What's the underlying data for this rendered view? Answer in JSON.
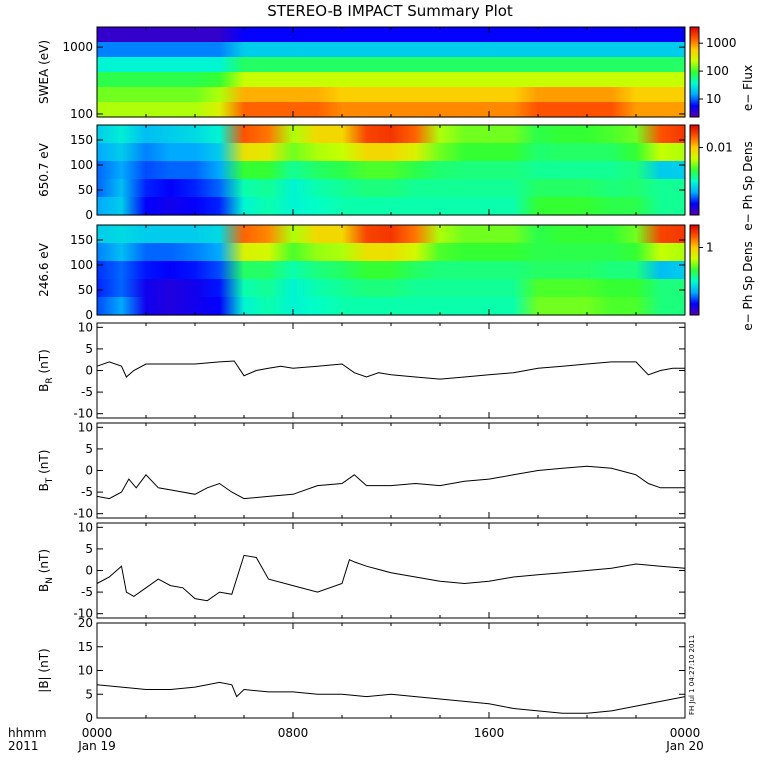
{
  "title": "STEREO-B IMPACT Summary Plot",
  "time_axis": {
    "corner_labels": [
      "hhmm",
      "2011"
    ],
    "ticks": [
      {
        "hours": 0,
        "top": "0000",
        "bottom": "Jan 19"
      },
      {
        "hours": 8,
        "top": "0800",
        "bottom": ""
      },
      {
        "hours": 16,
        "top": "1600",
        "bottom": ""
      },
      {
        "hours": 24,
        "top": "0000",
        "bottom": "Jan 20"
      }
    ]
  },
  "side_stamp": "FH Jul 1 04:27:10 2011",
  "colors": {
    "colormap": [
      "#5500aa",
      "#0000ff",
      "#00aaff",
      "#00ffcc",
      "#33ff33",
      "#ccff00",
      "#ffcc00",
      "#ff5500",
      "#dd0000"
    ],
    "line": "#000000"
  },
  "chart_data": [
    {
      "type": "heatmap",
      "id": "swea",
      "ylabel": "SWEA (eV)",
      "yscale": "log",
      "ylim": [
        90,
        2000
      ],
      "yticks": [
        "100",
        "1000"
      ],
      "colorbar_label": "e− Flux",
      "colorbar_ticks": [
        "10",
        "100",
        "1000"
      ],
      "x_hours": [
        0,
        1,
        2,
        3,
        4,
        5,
        6,
        7,
        8,
        9,
        10,
        11,
        12,
        13,
        14,
        15,
        16,
        17,
        18,
        19,
        20,
        21,
        22,
        23,
        24
      ],
      "energy_rows": [
        {
          "energy_eV": 1800,
          "levels": [
            0.05,
            0.05,
            0.05,
            0.05,
            0.05,
            0.05,
            0.12,
            0.12,
            0.12,
            0.12,
            0.12,
            0.12,
            0.12,
            0.12,
            0.12,
            0.12,
            0.12,
            0.12,
            0.12,
            0.12,
            0.12,
            0.12,
            0.12,
            0.12,
            0.12
          ]
        },
        {
          "energy_eV": 1000,
          "levels": [
            0.22,
            0.22,
            0.22,
            0.22,
            0.22,
            0.22,
            0.3,
            0.3,
            0.3,
            0.3,
            0.3,
            0.3,
            0.3,
            0.3,
            0.3,
            0.3,
            0.3,
            0.3,
            0.3,
            0.3,
            0.3,
            0.3,
            0.3,
            0.3,
            0.3
          ]
        },
        {
          "energy_eV": 600,
          "levels": [
            0.36,
            0.36,
            0.36,
            0.36,
            0.36,
            0.36,
            0.46,
            0.46,
            0.46,
            0.46,
            0.46,
            0.46,
            0.46,
            0.46,
            0.46,
            0.46,
            0.46,
            0.46,
            0.46,
            0.46,
            0.46,
            0.46,
            0.46,
            0.46,
            0.46
          ]
        },
        {
          "energy_eV": 300,
          "levels": [
            0.48,
            0.48,
            0.48,
            0.48,
            0.48,
            0.5,
            0.62,
            0.62,
            0.62,
            0.62,
            0.62,
            0.62,
            0.62,
            0.62,
            0.62,
            0.62,
            0.62,
            0.62,
            0.62,
            0.62,
            0.62,
            0.62,
            0.62,
            0.62,
            0.62
          ]
        },
        {
          "energy_eV": 180,
          "levels": [
            0.55,
            0.55,
            0.55,
            0.55,
            0.55,
            0.6,
            0.78,
            0.78,
            0.78,
            0.78,
            0.74,
            0.74,
            0.74,
            0.74,
            0.74,
            0.74,
            0.74,
            0.74,
            0.8,
            0.8,
            0.8,
            0.8,
            0.74,
            0.74,
            0.74
          ]
        },
        {
          "energy_eV": 110,
          "levels": [
            0.6,
            0.6,
            0.6,
            0.6,
            0.6,
            0.66,
            0.86,
            0.86,
            0.86,
            0.86,
            0.82,
            0.82,
            0.82,
            0.82,
            0.82,
            0.82,
            0.82,
            0.82,
            0.88,
            0.88,
            0.88,
            0.88,
            0.8,
            0.8,
            0.8
          ]
        }
      ]
    },
    {
      "type": "heatmap",
      "id": "pad650",
      "ylabel": "650.7 eV",
      "ylim": [
        0,
        180
      ],
      "yticks": [
        0,
        50,
        100,
        150
      ],
      "colorbar_label": "e− Ph Sp Dens",
      "colorbar_ticks": [
        "0.01"
      ],
      "x_hours": [
        0,
        1,
        2,
        3,
        4,
        5,
        6,
        7,
        8,
        9,
        10,
        11,
        12,
        13,
        14,
        15,
        16,
        17,
        18,
        19,
        20,
        21,
        22,
        23,
        24
      ],
      "pitch_rows": [
        {
          "pitch_deg": 165,
          "levels": [
            0.3,
            0.35,
            0.28,
            0.3,
            0.32,
            0.36,
            0.88,
            0.84,
            0.6,
            0.72,
            0.72,
            0.9,
            0.92,
            0.86,
            0.6,
            0.55,
            0.55,
            0.55,
            0.48,
            0.5,
            0.5,
            0.52,
            0.55,
            0.88,
            0.92
          ]
        },
        {
          "pitch_deg": 120,
          "levels": [
            0.25,
            0.3,
            0.22,
            0.25,
            0.25,
            0.3,
            0.7,
            0.68,
            0.55,
            0.6,
            0.62,
            0.72,
            0.72,
            0.66,
            0.55,
            0.5,
            0.5,
            0.5,
            0.45,
            0.46,
            0.46,
            0.46,
            0.5,
            0.62,
            0.6
          ]
        },
        {
          "pitch_deg": 90,
          "levels": [
            0.2,
            0.25,
            0.18,
            0.2,
            0.2,
            0.25,
            0.5,
            0.5,
            0.42,
            0.46,
            0.48,
            0.52,
            0.52,
            0.48,
            0.45,
            0.44,
            0.44,
            0.44,
            0.42,
            0.42,
            0.42,
            0.42,
            0.44,
            0.3,
            0.3
          ]
        },
        {
          "pitch_deg": 45,
          "levels": [
            0.2,
            0.28,
            0.15,
            0.12,
            0.15,
            0.2,
            0.4,
            0.42,
            0.36,
            0.4,
            0.42,
            0.44,
            0.44,
            0.42,
            0.42,
            0.42,
            0.42,
            0.42,
            0.46,
            0.46,
            0.46,
            0.44,
            0.45,
            0.42,
            0.42
          ]
        },
        {
          "pitch_deg": 10,
          "levels": [
            0.25,
            0.3,
            0.12,
            0.1,
            0.12,
            0.15,
            0.36,
            0.4,
            0.36,
            0.38,
            0.4,
            0.4,
            0.4,
            0.4,
            0.4,
            0.4,
            0.4,
            0.4,
            0.5,
            0.5,
            0.5,
            0.48,
            0.48,
            0.42,
            0.42
          ]
        }
      ]
    },
    {
      "type": "heatmap",
      "id": "pad246",
      "ylabel": "246.6 eV",
      "ylim": [
        0,
        180
      ],
      "yticks": [
        0,
        50,
        100,
        150
      ],
      "colorbar_label": "e− Ph Sp Dens",
      "colorbar_ticks": [
        "1"
      ],
      "x_hours": [
        0,
        1,
        2,
        3,
        4,
        5,
        6,
        7,
        8,
        9,
        10,
        11,
        12,
        13,
        14,
        15,
        16,
        17,
        18,
        19,
        20,
        21,
        22,
        23,
        24
      ],
      "pitch_rows": [
        {
          "pitch_deg": 165,
          "levels": [
            0.3,
            0.32,
            0.3,
            0.3,
            0.3,
            0.32,
            0.86,
            0.82,
            0.6,
            0.72,
            0.72,
            0.9,
            0.92,
            0.84,
            0.6,
            0.55,
            0.55,
            0.55,
            0.48,
            0.5,
            0.5,
            0.5,
            0.55,
            0.9,
            0.92
          ]
        },
        {
          "pitch_deg": 120,
          "levels": [
            0.22,
            0.28,
            0.2,
            0.2,
            0.22,
            0.25,
            0.66,
            0.64,
            0.52,
            0.58,
            0.6,
            0.7,
            0.7,
            0.64,
            0.52,
            0.5,
            0.5,
            0.5,
            0.48,
            0.48,
            0.48,
            0.48,
            0.5,
            0.62,
            0.6
          ]
        },
        {
          "pitch_deg": 90,
          "levels": [
            0.16,
            0.2,
            0.14,
            0.12,
            0.14,
            0.18,
            0.46,
            0.46,
            0.4,
            0.44,
            0.46,
            0.5,
            0.5,
            0.46,
            0.44,
            0.44,
            0.44,
            0.44,
            0.46,
            0.46,
            0.46,
            0.44,
            0.44,
            0.28,
            0.3
          ]
        },
        {
          "pitch_deg": 45,
          "levels": [
            0.15,
            0.2,
            0.1,
            0.08,
            0.1,
            0.14,
            0.4,
            0.42,
            0.36,
            0.4,
            0.42,
            0.44,
            0.44,
            0.42,
            0.42,
            0.42,
            0.42,
            0.42,
            0.52,
            0.52,
            0.52,
            0.5,
            0.5,
            0.44,
            0.44
          ]
        },
        {
          "pitch_deg": 10,
          "levels": [
            0.18,
            0.25,
            0.1,
            0.08,
            0.1,
            0.12,
            0.36,
            0.4,
            0.36,
            0.38,
            0.4,
            0.4,
            0.4,
            0.4,
            0.4,
            0.4,
            0.4,
            0.4,
            0.55,
            0.55,
            0.55,
            0.52,
            0.52,
            0.44,
            0.44
          ]
        }
      ]
    },
    {
      "type": "line",
      "id": "br",
      "ylabel": "B",
      "ylabel_sub": "R",
      "ylabel_unit": " (nT)",
      "ylim": [
        -11,
        11
      ],
      "yticks": [
        -10,
        -5,
        0,
        5,
        10
      ],
      "x_hours": [
        0,
        0.5,
        1,
        1.2,
        1.5,
        2,
        3,
        4,
        5,
        5.6,
        6,
        6.5,
        7,
        7.5,
        8,
        9,
        10,
        10.5,
        11,
        11.5,
        12,
        13,
        14,
        15,
        16,
        17,
        18,
        19,
        20,
        21,
        22,
        22.5,
        23,
        23.5,
        24
      ],
      "values": [
        1.0,
        2.0,
        1.0,
        -1.5,
        0.0,
        1.5,
        1.5,
        1.5,
        2.0,
        2.2,
        -1.2,
        0.0,
        0.5,
        1.0,
        0.5,
        1.0,
        1.5,
        -0.5,
        -1.5,
        -0.5,
        -1.0,
        -1.5,
        -2.0,
        -1.5,
        -1.0,
        -0.5,
        0.5,
        1.0,
        1.5,
        2.0,
        2.0,
        -1.0,
        0.0,
        0.5,
        0.5
      ]
    },
    {
      "type": "line",
      "id": "bt",
      "ylabel": "B",
      "ylabel_sub": "T",
      "ylabel_unit": " (nT)",
      "ylim": [
        -11,
        11
      ],
      "yticks": [
        -10,
        -5,
        0,
        5,
        10
      ],
      "x_hours": [
        0,
        0.5,
        1,
        1.3,
        1.6,
        2,
        2.5,
        3,
        4,
        4.5,
        5,
        5.5,
        6,
        7,
        8,
        9,
        10,
        10.5,
        11,
        12,
        13,
        14,
        15,
        16,
        17,
        18,
        19,
        20,
        21,
        22,
        22.5,
        23,
        23.5,
        24
      ],
      "values": [
        -6.0,
        -6.5,
        -5.0,
        -2.0,
        -4.0,
        -1.0,
        -4.0,
        -4.5,
        -5.5,
        -4.0,
        -3.0,
        -5.0,
        -6.5,
        -6.0,
        -5.5,
        -3.5,
        -3.0,
        -1.0,
        -3.5,
        -3.5,
        -3.0,
        -3.5,
        -2.5,
        -2.0,
        -1.0,
        0.0,
        0.5,
        1.0,
        0.5,
        -1.0,
        -3.0,
        -4.0,
        -4.0,
        -4.0
      ]
    },
    {
      "type": "line",
      "id": "bn",
      "ylabel": "B",
      "ylabel_sub": "N",
      "ylabel_unit": " (nT)",
      "ylim": [
        -11,
        11
      ],
      "yticks": [
        -10,
        -5,
        0,
        5,
        10
      ],
      "x_hours": [
        0,
        0.5,
        1,
        1.2,
        1.5,
        2,
        2.5,
        3,
        3.5,
        4,
        4.5,
        5,
        5.5,
        6,
        6.5,
        7,
        8,
        9,
        10,
        10.3,
        10.5,
        11,
        12,
        13,
        14,
        15,
        16,
        17,
        18,
        19,
        20,
        21,
        22,
        23,
        24
      ],
      "values": [
        -3.0,
        -1.5,
        1.0,
        -5.0,
        -6.0,
        -4.0,
        -2.0,
        -3.5,
        -4.0,
        -6.5,
        -7.0,
        -5.0,
        -5.5,
        3.5,
        3.0,
        -2.0,
        -3.5,
        -5.0,
        -3.0,
        2.5,
        2.0,
        1.0,
        -0.5,
        -1.5,
        -2.5,
        -3.0,
        -2.5,
        -1.5,
        -1.0,
        -0.5,
        0.0,
        0.5,
        1.5,
        1.0,
        0.5
      ]
    },
    {
      "type": "line",
      "id": "bmag",
      "ylabel": "|B| (nT)",
      "ylim": [
        0,
        20
      ],
      "yticks": [
        0,
        5,
        10,
        15,
        20
      ],
      "x_hours": [
        0,
        1,
        2,
        3,
        4,
        5,
        5.5,
        5.7,
        6,
        7,
        8,
        9,
        10,
        11,
        12,
        13,
        14,
        15,
        16,
        17,
        18,
        19,
        20,
        21,
        22,
        23,
        24
      ],
      "values": [
        7.0,
        6.5,
        6.0,
        6.0,
        6.5,
        7.5,
        7.0,
        4.5,
        6.0,
        5.5,
        5.5,
        5.0,
        5.0,
        4.5,
        5.0,
        4.5,
        4.0,
        3.5,
        3.0,
        2.0,
        1.5,
        1.0,
        1.0,
        1.5,
        2.5,
        3.5,
        4.5
      ]
    }
  ]
}
